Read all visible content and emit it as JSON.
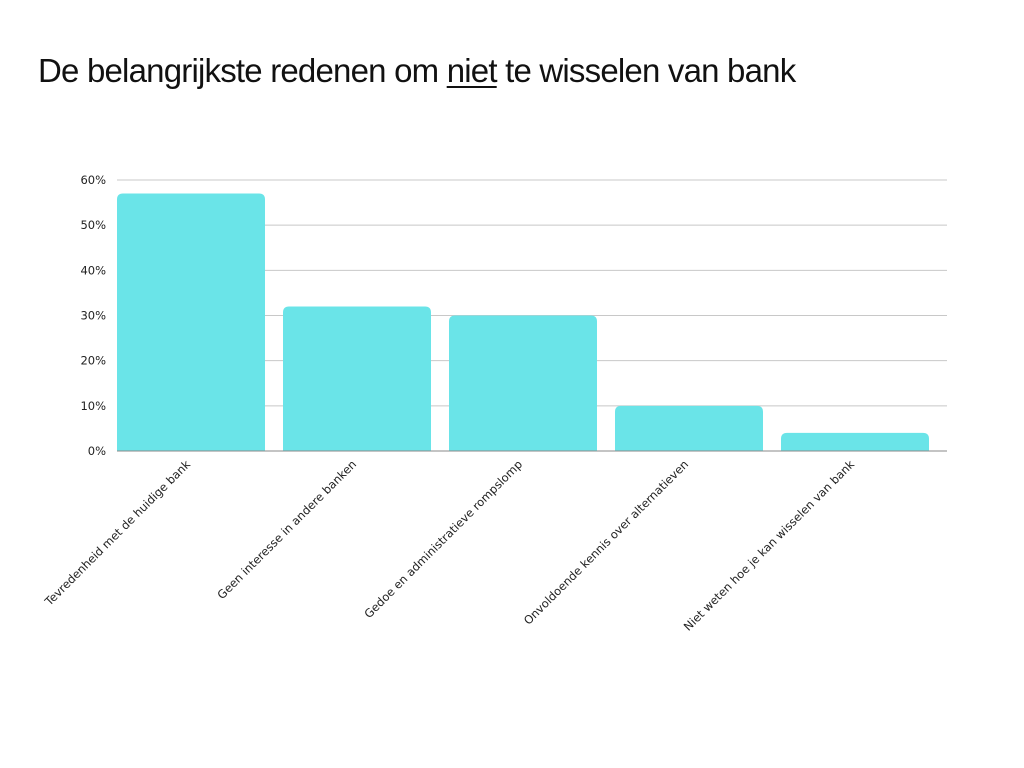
{
  "title": {
    "before": "De belangrijkste redenen om ",
    "emphasis": "niet",
    "after": " te wisselen van bank"
  },
  "chart_data": {
    "type": "bar",
    "categories": [
      "Tevredenheid met de huidige bank",
      "Geen interesse in andere banken",
      "Gedoe en administratieve rompslomp",
      "Onvoldoende kennis over alternatieven",
      "Niet weten hoe je kan wisselen van bank"
    ],
    "values": [
      57,
      32,
      30,
      10,
      4
    ],
    "ylim": [
      0,
      60
    ],
    "yticks": [
      0,
      10,
      20,
      30,
      40,
      50,
      60
    ],
    "ytick_labels": [
      "0%",
      "10%",
      "20%",
      "30%",
      "40%",
      "50%",
      "60%"
    ],
    "grid": true,
    "bar_color": "#6AE4E8",
    "grid_color": "#C8C8C8"
  }
}
